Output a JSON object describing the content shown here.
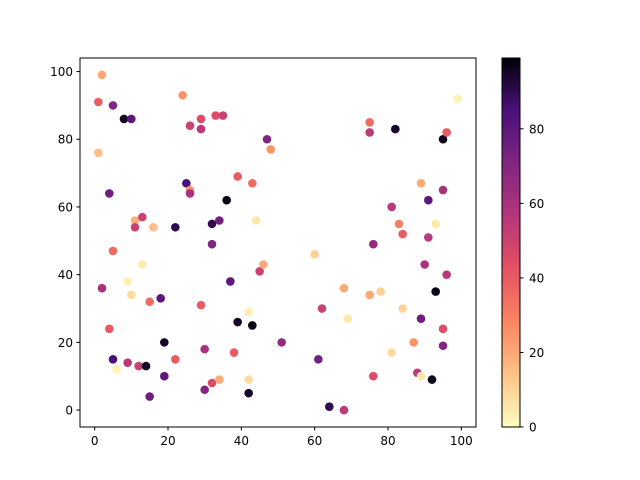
{
  "chart_data": {
    "type": "scatter",
    "title": "",
    "xlabel": "",
    "ylabel": "",
    "xlim": [
      -4,
      104
    ],
    "ylim": [
      -5,
      104
    ],
    "xticks": [
      "0",
      "20",
      "40",
      "60",
      "80",
      "100"
    ],
    "yticks": [
      "0",
      "20",
      "40",
      "60",
      "80",
      "100"
    ],
    "grid": false,
    "colormap": "magma_r",
    "colorbar": {
      "min": 0,
      "max": 99,
      "ticks": [
        "0",
        "20",
        "40",
        "60",
        "80"
      ]
    },
    "points": [
      {
        "x": 2,
        "y": 99,
        "c": 20
      },
      {
        "x": 1,
        "y": 91,
        "c": 40
      },
      {
        "x": 1,
        "y": 76,
        "c": 15
      },
      {
        "x": 5,
        "y": 90,
        "c": 70
      },
      {
        "x": 8,
        "y": 86,
        "c": 95
      },
      {
        "x": 10,
        "y": 86,
        "c": 80
      },
      {
        "x": 4,
        "y": 64,
        "c": 75
      },
      {
        "x": 5,
        "y": 47,
        "c": 35
      },
      {
        "x": 2,
        "y": 36,
        "c": 60
      },
      {
        "x": 4,
        "y": 24,
        "c": 40
      },
      {
        "x": 5,
        "y": 15,
        "c": 85
      },
      {
        "x": 6,
        "y": 12,
        "c": 2
      },
      {
        "x": 9,
        "y": 38,
        "c": 3
      },
      {
        "x": 10,
        "y": 34,
        "c": 8
      },
      {
        "x": 11,
        "y": 56,
        "c": 18
      },
      {
        "x": 11,
        "y": 54,
        "c": 50
      },
      {
        "x": 13,
        "y": 57,
        "c": 50
      },
      {
        "x": 13,
        "y": 43,
        "c": 4
      },
      {
        "x": 9,
        "y": 14,
        "c": 55
      },
      {
        "x": 12,
        "y": 13,
        "c": 50
      },
      {
        "x": 14,
        "y": 13,
        "c": 95
      },
      {
        "x": 15,
        "y": 32,
        "c": 35
      },
      {
        "x": 16,
        "y": 54,
        "c": 15
      },
      {
        "x": 18,
        "y": 33,
        "c": 80
      },
      {
        "x": 19,
        "y": 20,
        "c": 95
      },
      {
        "x": 19,
        "y": 10,
        "c": 80
      },
      {
        "x": 15,
        "y": 4,
        "c": 75
      },
      {
        "x": 22,
        "y": 54,
        "c": 90
      },
      {
        "x": 22,
        "y": 15,
        "c": 40
      },
      {
        "x": 24,
        "y": 93,
        "c": 25
      },
      {
        "x": 26,
        "y": 84,
        "c": 50
      },
      {
        "x": 25,
        "y": 67,
        "c": 85
      },
      {
        "x": 26,
        "y": 65,
        "c": 25
      },
      {
        "x": 26,
        "y": 64,
        "c": 60
      },
      {
        "x": 29,
        "y": 86,
        "c": 45
      },
      {
        "x": 29,
        "y": 83,
        "c": 55
      },
      {
        "x": 29,
        "y": 31,
        "c": 40
      },
      {
        "x": 30,
        "y": 18,
        "c": 60
      },
      {
        "x": 30,
        "y": 6,
        "c": 70
      },
      {
        "x": 32,
        "y": 8,
        "c": 45
      },
      {
        "x": 33,
        "y": 87,
        "c": 45
      },
      {
        "x": 35,
        "y": 87,
        "c": 50
      },
      {
        "x": 32,
        "y": 55,
        "c": 90
      },
      {
        "x": 34,
        "y": 56,
        "c": 75
      },
      {
        "x": 32,
        "y": 49,
        "c": 70
      },
      {
        "x": 34,
        "y": 9,
        "c": 20
      },
      {
        "x": 36,
        "y": 62,
        "c": 98
      },
      {
        "x": 37,
        "y": 38,
        "c": 80
      },
      {
        "x": 38,
        "y": 17,
        "c": 40
      },
      {
        "x": 39,
        "y": 26,
        "c": 95
      },
      {
        "x": 39,
        "y": 69,
        "c": 40
      },
      {
        "x": 42,
        "y": 29,
        "c": 3
      },
      {
        "x": 42,
        "y": 9,
        "c": 8
      },
      {
        "x": 42,
        "y": 5,
        "c": 95
      },
      {
        "x": 43,
        "y": 25,
        "c": 98
      },
      {
        "x": 43,
        "y": 67,
        "c": 35
      },
      {
        "x": 44,
        "y": 56,
        "c": 5
      },
      {
        "x": 45,
        "y": 41,
        "c": 50
      },
      {
        "x": 46,
        "y": 43,
        "c": 20
      },
      {
        "x": 47,
        "y": 80,
        "c": 70
      },
      {
        "x": 48,
        "y": 77,
        "c": 25
      },
      {
        "x": 51,
        "y": 20,
        "c": 65
      },
      {
        "x": 60,
        "y": 46,
        "c": 10
      },
      {
        "x": 61,
        "y": 15,
        "c": 75
      },
      {
        "x": 62,
        "y": 30,
        "c": 50
      },
      {
        "x": 64,
        "y": 1,
        "c": 90
      },
      {
        "x": 68,
        "y": 0,
        "c": 55
      },
      {
        "x": 68,
        "y": 36,
        "c": 20
      },
      {
        "x": 69,
        "y": 27,
        "c": 5
      },
      {
        "x": 75,
        "y": 85,
        "c": 35
      },
      {
        "x": 75,
        "y": 82,
        "c": 55
      },
      {
        "x": 76,
        "y": 49,
        "c": 65
      },
      {
        "x": 75,
        "y": 34,
        "c": 20
      },
      {
        "x": 76,
        "y": 10,
        "c": 45
      },
      {
        "x": 78,
        "y": 35,
        "c": 10
      },
      {
        "x": 81,
        "y": 60,
        "c": 55
      },
      {
        "x": 82,
        "y": 83,
        "c": 95
      },
      {
        "x": 83,
        "y": 55,
        "c": 30
      },
      {
        "x": 84,
        "y": 52,
        "c": 40
      },
      {
        "x": 84,
        "y": 30,
        "c": 10
      },
      {
        "x": 81,
        "y": 17,
        "c": 8
      },
      {
        "x": 87,
        "y": 20,
        "c": 25
      },
      {
        "x": 88,
        "y": 11,
        "c": 55
      },
      {
        "x": 89,
        "y": 10,
        "c": 5
      },
      {
        "x": 89,
        "y": 27,
        "c": 75
      },
      {
        "x": 89,
        "y": 67,
        "c": 20
      },
      {
        "x": 90,
        "y": 43,
        "c": 60
      },
      {
        "x": 91,
        "y": 51,
        "c": 55
      },
      {
        "x": 91,
        "y": 62,
        "c": 80
      },
      {
        "x": 92,
        "y": 9,
        "c": 97
      },
      {
        "x": 93,
        "y": 35,
        "c": 97
      },
      {
        "x": 93,
        "y": 55,
        "c": 5
      },
      {
        "x": 95,
        "y": 80,
        "c": 97
      },
      {
        "x": 95,
        "y": 65,
        "c": 60
      },
      {
        "x": 95,
        "y": 24,
        "c": 45
      },
      {
        "x": 95,
        "y": 19,
        "c": 70
      },
      {
        "x": 96,
        "y": 82,
        "c": 40
      },
      {
        "x": 96,
        "y": 40,
        "c": 55
      },
      {
        "x": 99,
        "y": 92,
        "c": 2
      }
    ]
  }
}
